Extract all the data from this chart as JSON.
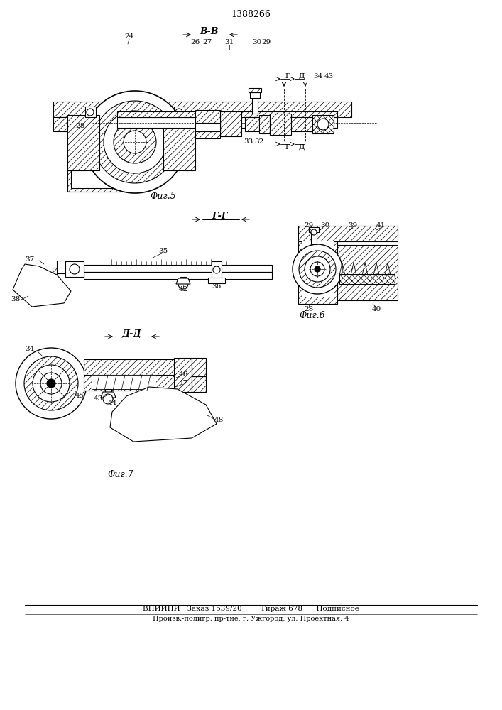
{
  "title": "1388266",
  "fig5_label": "В-В",
  "fig6_label": "Г-Г",
  "fig7_label": "Д-Д",
  "fig5_caption": "Фиг.5",
  "fig6_caption": "Фиг.6",
  "fig7_caption": "Фиг.7",
  "footer_line1": "ВНИИПИ   Заказ 1539/20        Тираж 678      Подписное",
  "footer_line2": "Произв.-полигр. пр-тие, г. Ужгород, ул. Проектная, 4",
  "bg_color": "#ffffff",
  "line_color": "#000000"
}
